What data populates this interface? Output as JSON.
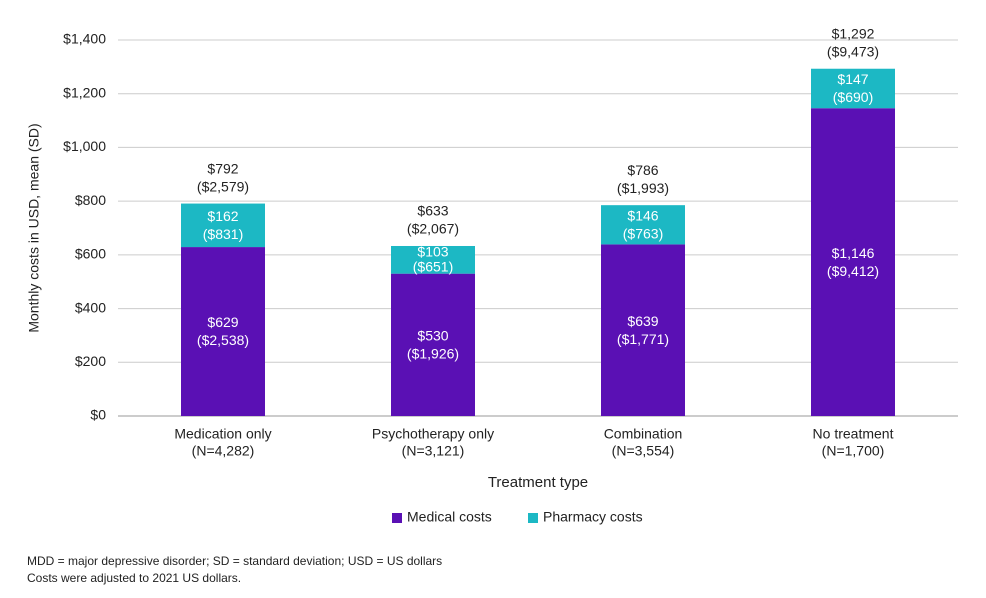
{
  "chart_data": {
    "type": "bar",
    "stacked": true,
    "categories": [
      "Medication only",
      "Psychotherapy only",
      "Combination",
      "No treatment"
    ],
    "category_n": [
      "(N=4,282)",
      "(N=3,121)",
      "(N=3,554)",
      "(N=1,700)"
    ],
    "series": [
      {
        "name": "Medical costs",
        "color": "#5a10b4",
        "values": [
          629,
          530,
          639,
          1146
        ],
        "value_labels": [
          "$629",
          "$530",
          "$639",
          "$1,146"
        ],
        "sd_labels": [
          "($2,538)",
          "($1,926)",
          "($1,771)",
          "($9,412)"
        ]
      },
      {
        "name": "Pharmacy costs",
        "color": "#1cb8c4",
        "values": [
          162,
          103,
          146,
          147
        ],
        "value_labels": [
          "$162",
          "$103",
          "$146",
          "$147"
        ],
        "sd_labels": [
          "($831)",
          "($651)",
          "($763)",
          "($690)"
        ]
      }
    ],
    "totals": [
      792,
      633,
      786,
      1292
    ],
    "total_labels": [
      "$792",
      "$633",
      "$786",
      "$1,292"
    ],
    "total_sd_labels": [
      "($2,579)",
      "($2,067)",
      "($1,993)",
      "($9,473)"
    ],
    "ylim": [
      0,
      1400
    ],
    "yticks": [
      0,
      200,
      400,
      600,
      800,
      1000,
      1200,
      1400
    ],
    "ytick_labels": [
      "$0",
      "$200",
      "$400",
      "$600",
      "$800",
      "$1,000",
      "$1,200",
      "$1,400"
    ],
    "xlabel": "Treatment type",
    "ylabel": "Monthly costs in USD, mean (SD)",
    "grid": true,
    "legend_position": "bottom"
  },
  "footnotes": {
    "line1": "MDD = major depressive disorder; SD = standard deviation; USD = US dollars",
    "line2": "Costs were adjusted to 2021 US dollars."
  },
  "colors": {
    "gridline": "#cccccc",
    "axis": "#999999",
    "text": "#222222",
    "bar_text": "#ffffff"
  }
}
